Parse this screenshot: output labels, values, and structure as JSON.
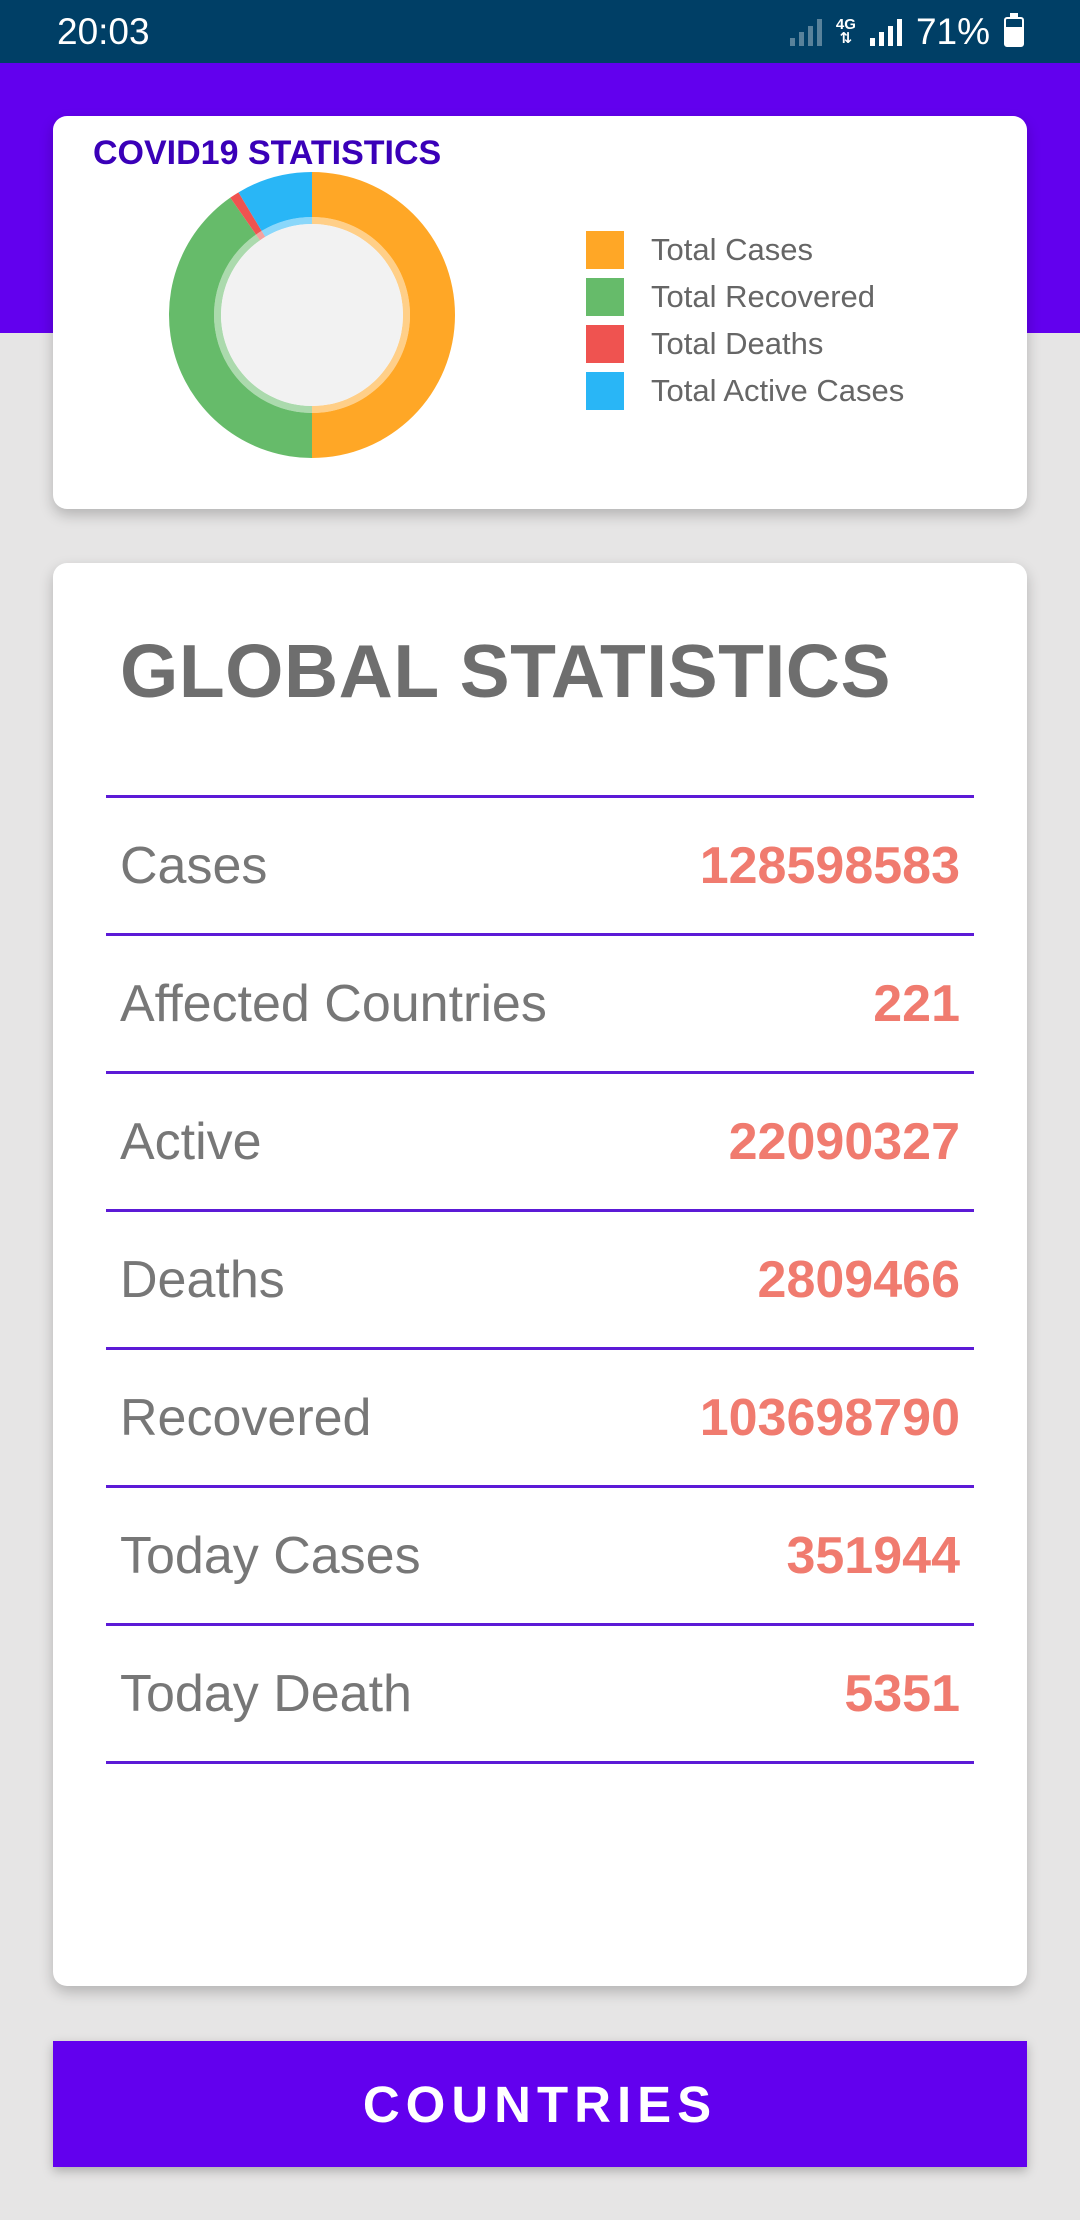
{
  "status_bar": {
    "time": "20:03",
    "network": "4G",
    "battery": "71%"
  },
  "chart": {
    "title": "COVID19 STATISTICS",
    "legend": [
      {
        "label": "Total Cases",
        "color": "#ffa726"
      },
      {
        "label": "Total Recovered",
        "color": "#66bb6a"
      },
      {
        "label": "Total Deaths",
        "color": "#ef5350"
      },
      {
        "label": "Total Active Cases",
        "color": "#29b6f6"
      }
    ]
  },
  "chart_data": {
    "type": "pie",
    "title": "COVID19 STATISTICS",
    "categories": [
      "Total Cases",
      "Total Recovered",
      "Total Deaths",
      "Total Active Cases"
    ],
    "values": [
      128598583,
      103698790,
      2809466,
      22090327
    ],
    "colors": [
      "#ffa726",
      "#66bb6a",
      "#ef5350",
      "#29b6f6"
    ],
    "legend": "right"
  },
  "global": {
    "title": "GLOBAL STATISTICS",
    "rows": [
      {
        "label": "Cases",
        "value": "128598583"
      },
      {
        "label": "Affected Countries",
        "value": "221"
      },
      {
        "label": "Active",
        "value": "22090327"
      },
      {
        "label": "Deaths",
        "value": "2809466"
      },
      {
        "label": "Recovered",
        "value": "103698790"
      },
      {
        "label": "Today Cases",
        "value": "351944"
      },
      {
        "label": "Today Death",
        "value": "5351"
      }
    ]
  },
  "button": {
    "label": "COUNTRIES"
  }
}
